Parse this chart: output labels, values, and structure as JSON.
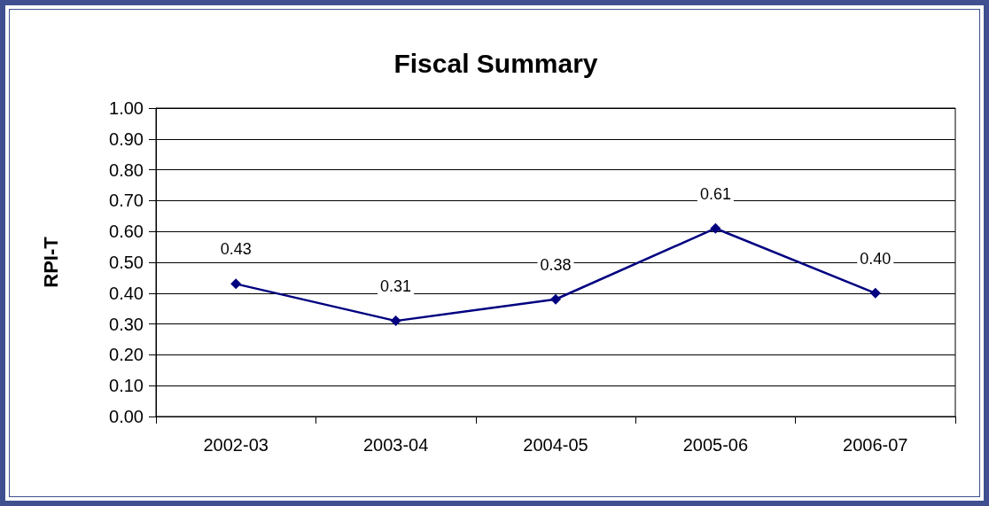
{
  "chart_data": {
    "type": "line",
    "title": "Fiscal Summary",
    "ylabel": "RPI-T",
    "categories": [
      "2002-03",
      "2003-04",
      "2004-05",
      "2005-06",
      "2006-07"
    ],
    "series": [
      {
        "color": "#000080",
        "values": [
          0.43,
          0.31,
          0.38,
          0.61,
          0.4
        ],
        "value_labels": [
          "0.43",
          "0.31",
          "0.38",
          "0.61",
          "0.40"
        ]
      }
    ],
    "ylim": [
      0,
      1
    ],
    "yticks": [
      {
        "value": 0,
        "label": "0.00"
      },
      {
        "value": 0.1,
        "label": "0.10"
      },
      {
        "value": 0.2,
        "label": "0.20"
      },
      {
        "value": 0.3,
        "label": "0.30"
      },
      {
        "value": 0.4,
        "label": "0.40"
      },
      {
        "value": 0.5,
        "label": "0.50"
      },
      {
        "value": 0.6,
        "label": "0.60"
      },
      {
        "value": 0.7,
        "label": "0.70"
      },
      {
        "value": 0.8,
        "label": "0.80"
      },
      {
        "value": 0.9,
        "label": "0.90"
      },
      {
        "value": 1,
        "label": "1.00"
      }
    ],
    "grid": "y",
    "marker": "diamond",
    "line_style": "solid"
  }
}
